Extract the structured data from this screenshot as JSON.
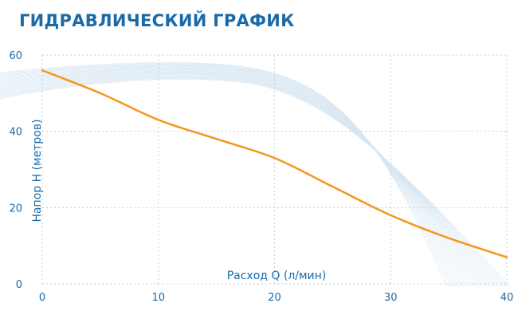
{
  "title": "ГИДРАВЛИЧЕСКИЙ ГРАФИК",
  "colors": {
    "accent": "#1a6aa8",
    "curve": "#f5961e",
    "grid": "#c9cdd2",
    "decor": "#d7e6f2"
  },
  "chart_data": {
    "type": "line",
    "title": "ГИДРАВЛИЧЕСКИЙ ГРАФИК",
    "xlabel": "Расход Q (л/мин)",
    "ylabel": "Напор Н (метров)",
    "xlim": [
      0,
      40
    ],
    "ylim": [
      0,
      60
    ],
    "x_ticks": [
      "0",
      "10",
      "20",
      "30",
      "40"
    ],
    "y_ticks": [
      "0",
      "20",
      "40",
      "60"
    ],
    "grid": true,
    "series": [
      {
        "x": [
          0,
          5,
          10,
          15,
          20,
          25,
          30,
          35,
          40
        ],
        "values": [
          56,
          50,
          43,
          38,
          33,
          25.5,
          18,
          12,
          7
        ]
      }
    ]
  }
}
